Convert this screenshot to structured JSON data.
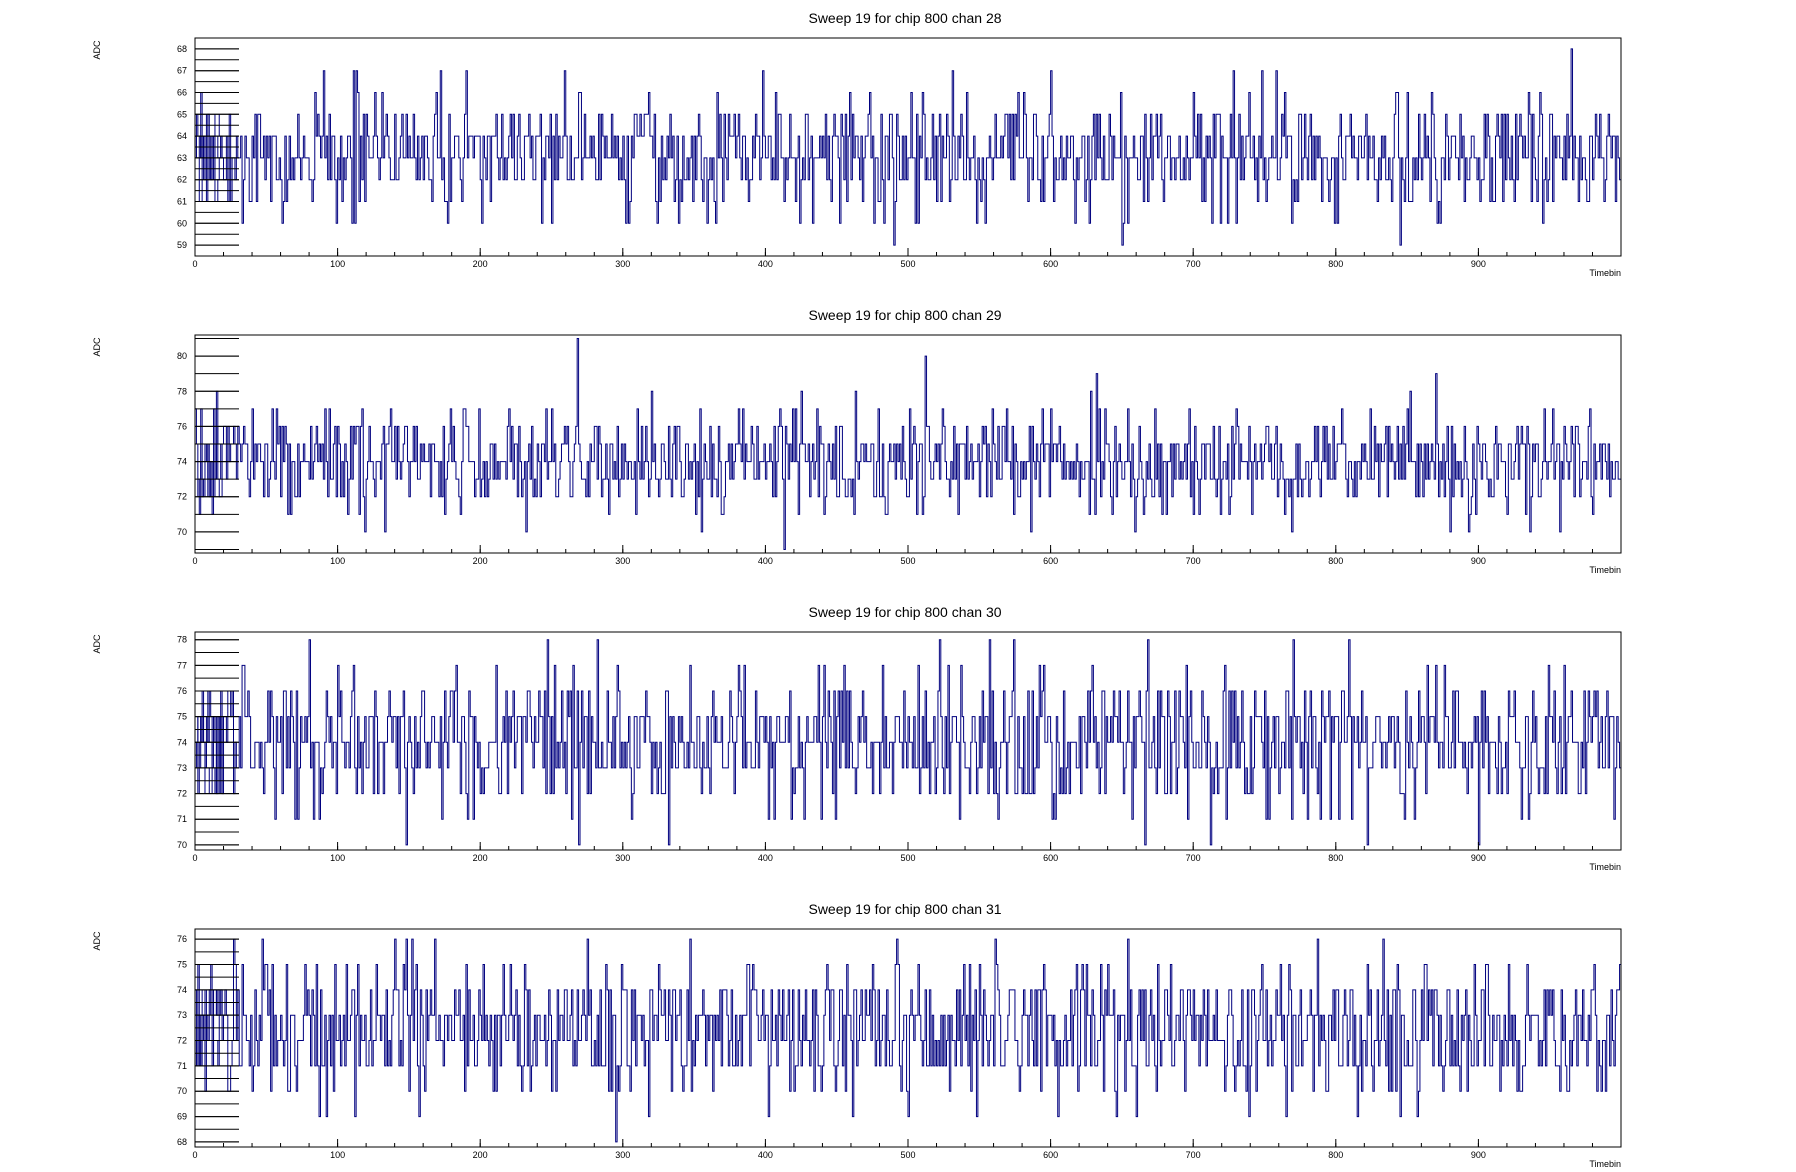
{
  "chart_data": [
    {
      "type": "line",
      "title": "Sweep 19 for chip 800 chan 28",
      "xlabel": "Timebin",
      "ylabel": "ADC",
      "xlim": [
        0,
        1000
      ],
      "ylim": [
        58.5,
        68.5
      ],
      "xticks": [
        0,
        100,
        200,
        300,
        400,
        500,
        600,
        700,
        800,
        900
      ],
      "yticks": [
        59,
        60,
        61,
        62,
        63,
        64,
        65,
        66,
        67,
        68
      ],
      "grid": false,
      "series": [
        {
          "color": "#00007f",
          "baseline": 63,
          "spread": 1.3,
          "seed": 28,
          "spikes": [
            [
              4,
              66
            ],
            [
              23,
              61
            ],
            [
              61,
              60
            ],
            [
              90,
              67
            ],
            [
              113,
              67
            ],
            [
              172,
              67
            ],
            [
              190,
              67
            ],
            [
              250,
              60
            ],
            [
              302,
              60
            ],
            [
              398,
              67
            ],
            [
              483,
              60
            ],
            [
              490,
              59
            ],
            [
              531,
              67
            ],
            [
              548,
              60
            ],
            [
              600,
              67
            ],
            [
              654,
              60
            ],
            [
              728,
              67
            ],
            [
              748,
              67
            ],
            [
              758,
              67
            ],
            [
              845,
              59
            ],
            [
              873,
              60
            ],
            [
              965,
              68
            ]
          ]
        }
      ]
    },
    {
      "type": "line",
      "title": "Sweep 19 for chip 800 chan 29",
      "xlabel": "Timebin",
      "ylabel": "ADC",
      "xlim": [
        0,
        1000
      ],
      "ylim": [
        68.8,
        81.2
      ],
      "xticks": [
        0,
        100,
        200,
        300,
        400,
        500,
        600,
        700,
        800,
        900
      ],
      "yticks": [
        70,
        72,
        74,
        76,
        78,
        80
      ],
      "grid": false,
      "series": [
        {
          "color": "#00007f",
          "baseline": 74,
          "spread": 1.5,
          "seed": 29,
          "spikes": [
            [
              15,
              78
            ],
            [
              232,
              70
            ],
            [
              268,
              81
            ],
            [
              320,
              78
            ],
            [
              355,
              70
            ],
            [
              413,
              69
            ],
            [
              512,
              80
            ],
            [
              586,
              70
            ],
            [
              628,
              78
            ],
            [
              632,
              79
            ],
            [
              659,
              70
            ],
            [
              870,
              79
            ],
            [
              957,
              70
            ]
          ]
        }
      ]
    },
    {
      "type": "line",
      "title": "Sweep 19 for chip 800 chan 30",
      "xlabel": "Timebin",
      "ylabel": "ADC",
      "xlim": [
        0,
        1000
      ],
      "ylim": [
        69.8,
        78.3
      ],
      "xticks": [
        0,
        100,
        200,
        300,
        400,
        500,
        600,
        700,
        800,
        900
      ],
      "yticks": [
        70,
        71,
        72,
        73,
        74,
        75,
        76,
        77,
        78
      ],
      "grid": false,
      "series": [
        {
          "color": "#00007f",
          "baseline": 74,
          "spread": 1.4,
          "seed": 30,
          "spikes": [
            [
              80,
              78
            ],
            [
              148,
              70
            ],
            [
              332,
              70
            ],
            [
              522,
              78
            ],
            [
              557,
              78
            ],
            [
              666,
              70
            ],
            [
              668,
              78
            ],
            [
              712,
              70
            ],
            [
              770,
              78
            ],
            [
              855,
              71
            ],
            [
              935,
              71
            ]
          ]
        }
      ]
    },
    {
      "type": "line",
      "title": "Sweep 19 for chip 800 chan 31",
      "xlabel": "Timebin",
      "ylabel": "ADC",
      "xlim": [
        0,
        1000
      ],
      "ylim": [
        67.8,
        76.4
      ],
      "xticks": [
        0,
        100,
        200,
        300,
        400,
        500,
        600,
        700,
        800,
        900
      ],
      "yticks": [
        68,
        69,
        70,
        71,
        72,
        73,
        74,
        75,
        76
      ],
      "grid": false,
      "series": [
        {
          "color": "#00007f",
          "baseline": 72.5,
          "spread": 1.4,
          "seed": 31,
          "spikes": [
            [
              47,
              76
            ],
            [
              92,
              69
            ],
            [
              112,
              69
            ],
            [
              157,
              69
            ],
            [
              275,
              76
            ],
            [
              295,
              68
            ],
            [
              347,
              76
            ],
            [
              500,
              69
            ],
            [
              548,
              69
            ],
            [
              660,
              69
            ],
            [
              765,
              69
            ],
            [
              845,
              69
            ],
            [
              857,
              69
            ]
          ]
        }
      ]
    }
  ]
}
